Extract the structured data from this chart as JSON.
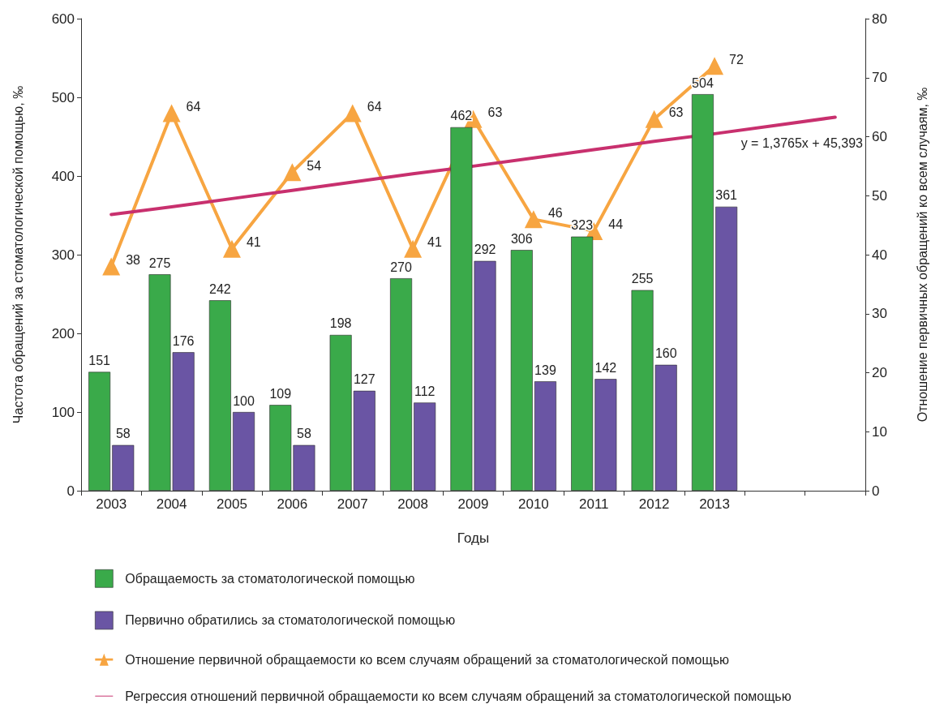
{
  "chart_data": {
    "type": "bar",
    "xlabel": "Годы",
    "ylabel": "Частота обращений за стоматологической помощью, ‰",
    "y2label": "Отношение первичных обращений ко всем случаям, ‰",
    "categories": [
      "2003",
      "2004",
      "2005",
      "2006",
      "2007",
      "2008",
      "2009",
      "2010",
      "2011",
      "2012",
      "2013",
      null,
      null
    ],
    "series": [
      {
        "name": "Обращаемость за стоматологической помощью",
        "color": "#3aaa4a",
        "values": [
          151,
          275,
          242,
          109,
          198,
          270,
          462,
          306,
          323,
          255,
          504,
          null,
          null
        ]
      },
      {
        "name": "Первично обратились за стоматологической помощью",
        "color": "#6a55a4",
        "values": [
          58,
          176,
          100,
          58,
          127,
          112,
          292,
          139,
          142,
          160,
          361,
          null,
          null
        ]
      },
      {
        "name": "Отношение первичной обращаемости ко всем случаям обращений за стоматологической помощью",
        "type": "line",
        "axis": "y2",
        "marker": "triangle",
        "color": "#f7a541",
        "values": [
          38,
          64,
          41,
          54,
          64,
          41,
          63,
          46,
          44,
          63,
          72,
          null,
          null
        ]
      },
      {
        "name": "Регрессия отношений первичной обращаемости ко всем случаям обращений за стоматологической помощью",
        "type": "line",
        "axis": "y2",
        "marker": "none",
        "data_labels": false,
        "color": "#c8306e",
        "values": [
          46.8,
          48.1,
          49.5,
          50.9,
          52.3,
          53.7,
          55.0,
          56.4,
          57.8,
          59.2,
          60.5,
          61.9,
          63.3
        ]
      }
    ],
    "ylim": [
      0,
      600
    ],
    "yticks": [
      0,
      100,
      200,
      300,
      400,
      500,
      600
    ],
    "y2lim": [
      0,
      80
    ],
    "y2ticks": [
      0,
      10,
      20,
      30,
      40,
      50,
      60,
      70,
      80
    ],
    "data_labels": true,
    "grid": false,
    "legend": "bottom",
    "annotations": [
      "y = 1,3765x + 45,393"
    ]
  }
}
